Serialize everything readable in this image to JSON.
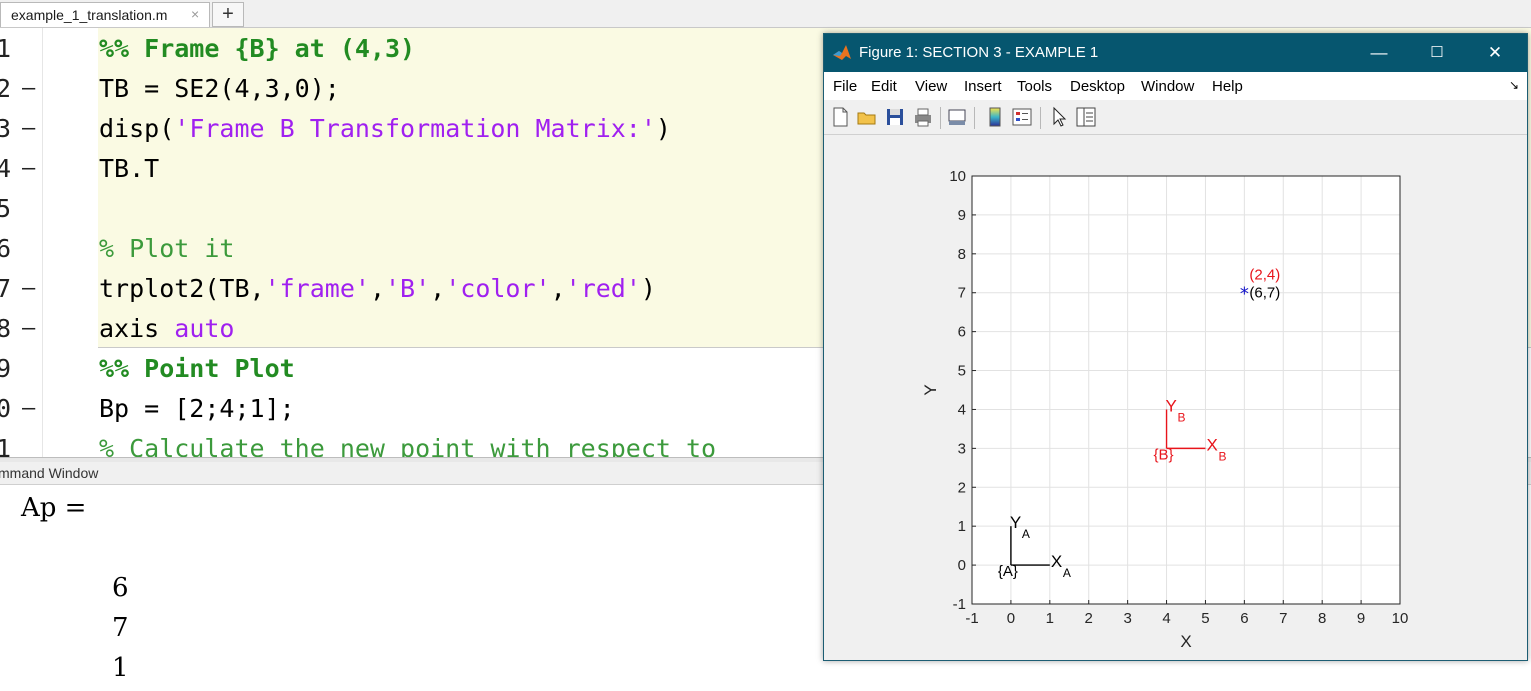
{
  "editor": {
    "tab_label": "example_1_translation.m",
    "tab_close": "×",
    "tab_add": "+",
    "lines": [
      {
        "num": "1",
        "dash": false
      },
      {
        "num": "2",
        "dash": true
      },
      {
        "num": "3",
        "dash": true
      },
      {
        "num": "4",
        "dash": true
      },
      {
        "num": "5",
        "dash": false
      },
      {
        "num": "6",
        "dash": false
      },
      {
        "num": "7",
        "dash": true
      },
      {
        "num": "8",
        "dash": true
      },
      {
        "num": "9",
        "dash": false
      },
      {
        "num": "0",
        "dash": true
      },
      {
        "num": "1",
        "dash": false
      }
    ],
    "code": {
      "l1": "%% Frame {B} at (4,3)",
      "l2": "TB = SE2(4,3,0);",
      "l3_a": "disp(",
      "l3_b": "'Frame B Transformation Matrix:'",
      "l3_c": ")",
      "l4": "TB.T",
      "l6": "% Plot it",
      "l7_a": "trplot2(TB,",
      "l7_b": "'frame'",
      "l7_c": ",",
      "l7_d": "'B'",
      "l7_e": ",",
      "l7_f": "'color'",
      "l7_g": ",",
      "l7_h": "'red'",
      "l7_i": ")",
      "l8_a": "axis ",
      "l8_b": "auto",
      "l9": "%% Point Plot",
      "l10": "Bp = [2;4;1];",
      "l11": "% Calculate the new point with respect to"
    }
  },
  "command_window": {
    "title": "mmand Window",
    "output_var": "Ap =",
    "values": [
      "6",
      "7",
      "1"
    ]
  },
  "figure": {
    "title": "Figure 1: SECTION 3 - EXAMPLE 1",
    "controls": {
      "minimize": "—",
      "maximize": "☐",
      "close": "✕"
    },
    "menu": [
      "File",
      "Edit",
      "View",
      "Insert",
      "Tools",
      "Desktop",
      "Window",
      "Help"
    ],
    "menu_corner": "↘",
    "toolbar": [
      "new-figure",
      "open-file",
      "save",
      "print",
      "link-plot",
      "insert-colorbar",
      "insert-legend",
      "edit-plot",
      "property-inspector"
    ]
  },
  "chart_data": {
    "type": "scatter",
    "xlabel": "X",
    "ylabel": "Y",
    "xlim": [
      -1,
      10
    ],
    "ylim": [
      -1,
      10
    ],
    "xticks": [
      "-1",
      "0",
      "1",
      "2",
      "3",
      "4",
      "5",
      "6",
      "7",
      "8",
      "9",
      "10"
    ],
    "yticks": [
      "-1",
      "0",
      "1",
      "2",
      "3",
      "4",
      "5",
      "6",
      "7",
      "8",
      "9",
      "10"
    ],
    "grid": true,
    "frames": [
      {
        "name": "{A}",
        "x_label": "X",
        "y_label": "Y",
        "sub": "A",
        "origin": [
          0,
          0
        ],
        "color": "#000000"
      },
      {
        "name": "{B}",
        "x_label": "X",
        "y_label": "Y",
        "sub": "B",
        "origin": [
          4,
          3
        ],
        "color": "#e8141b"
      }
    ],
    "points": [
      {
        "x": 6,
        "y": 7,
        "marker": "*",
        "color": "#1010c8",
        "label_black": "(6,7)",
        "label_red": "(2,4)"
      }
    ]
  }
}
